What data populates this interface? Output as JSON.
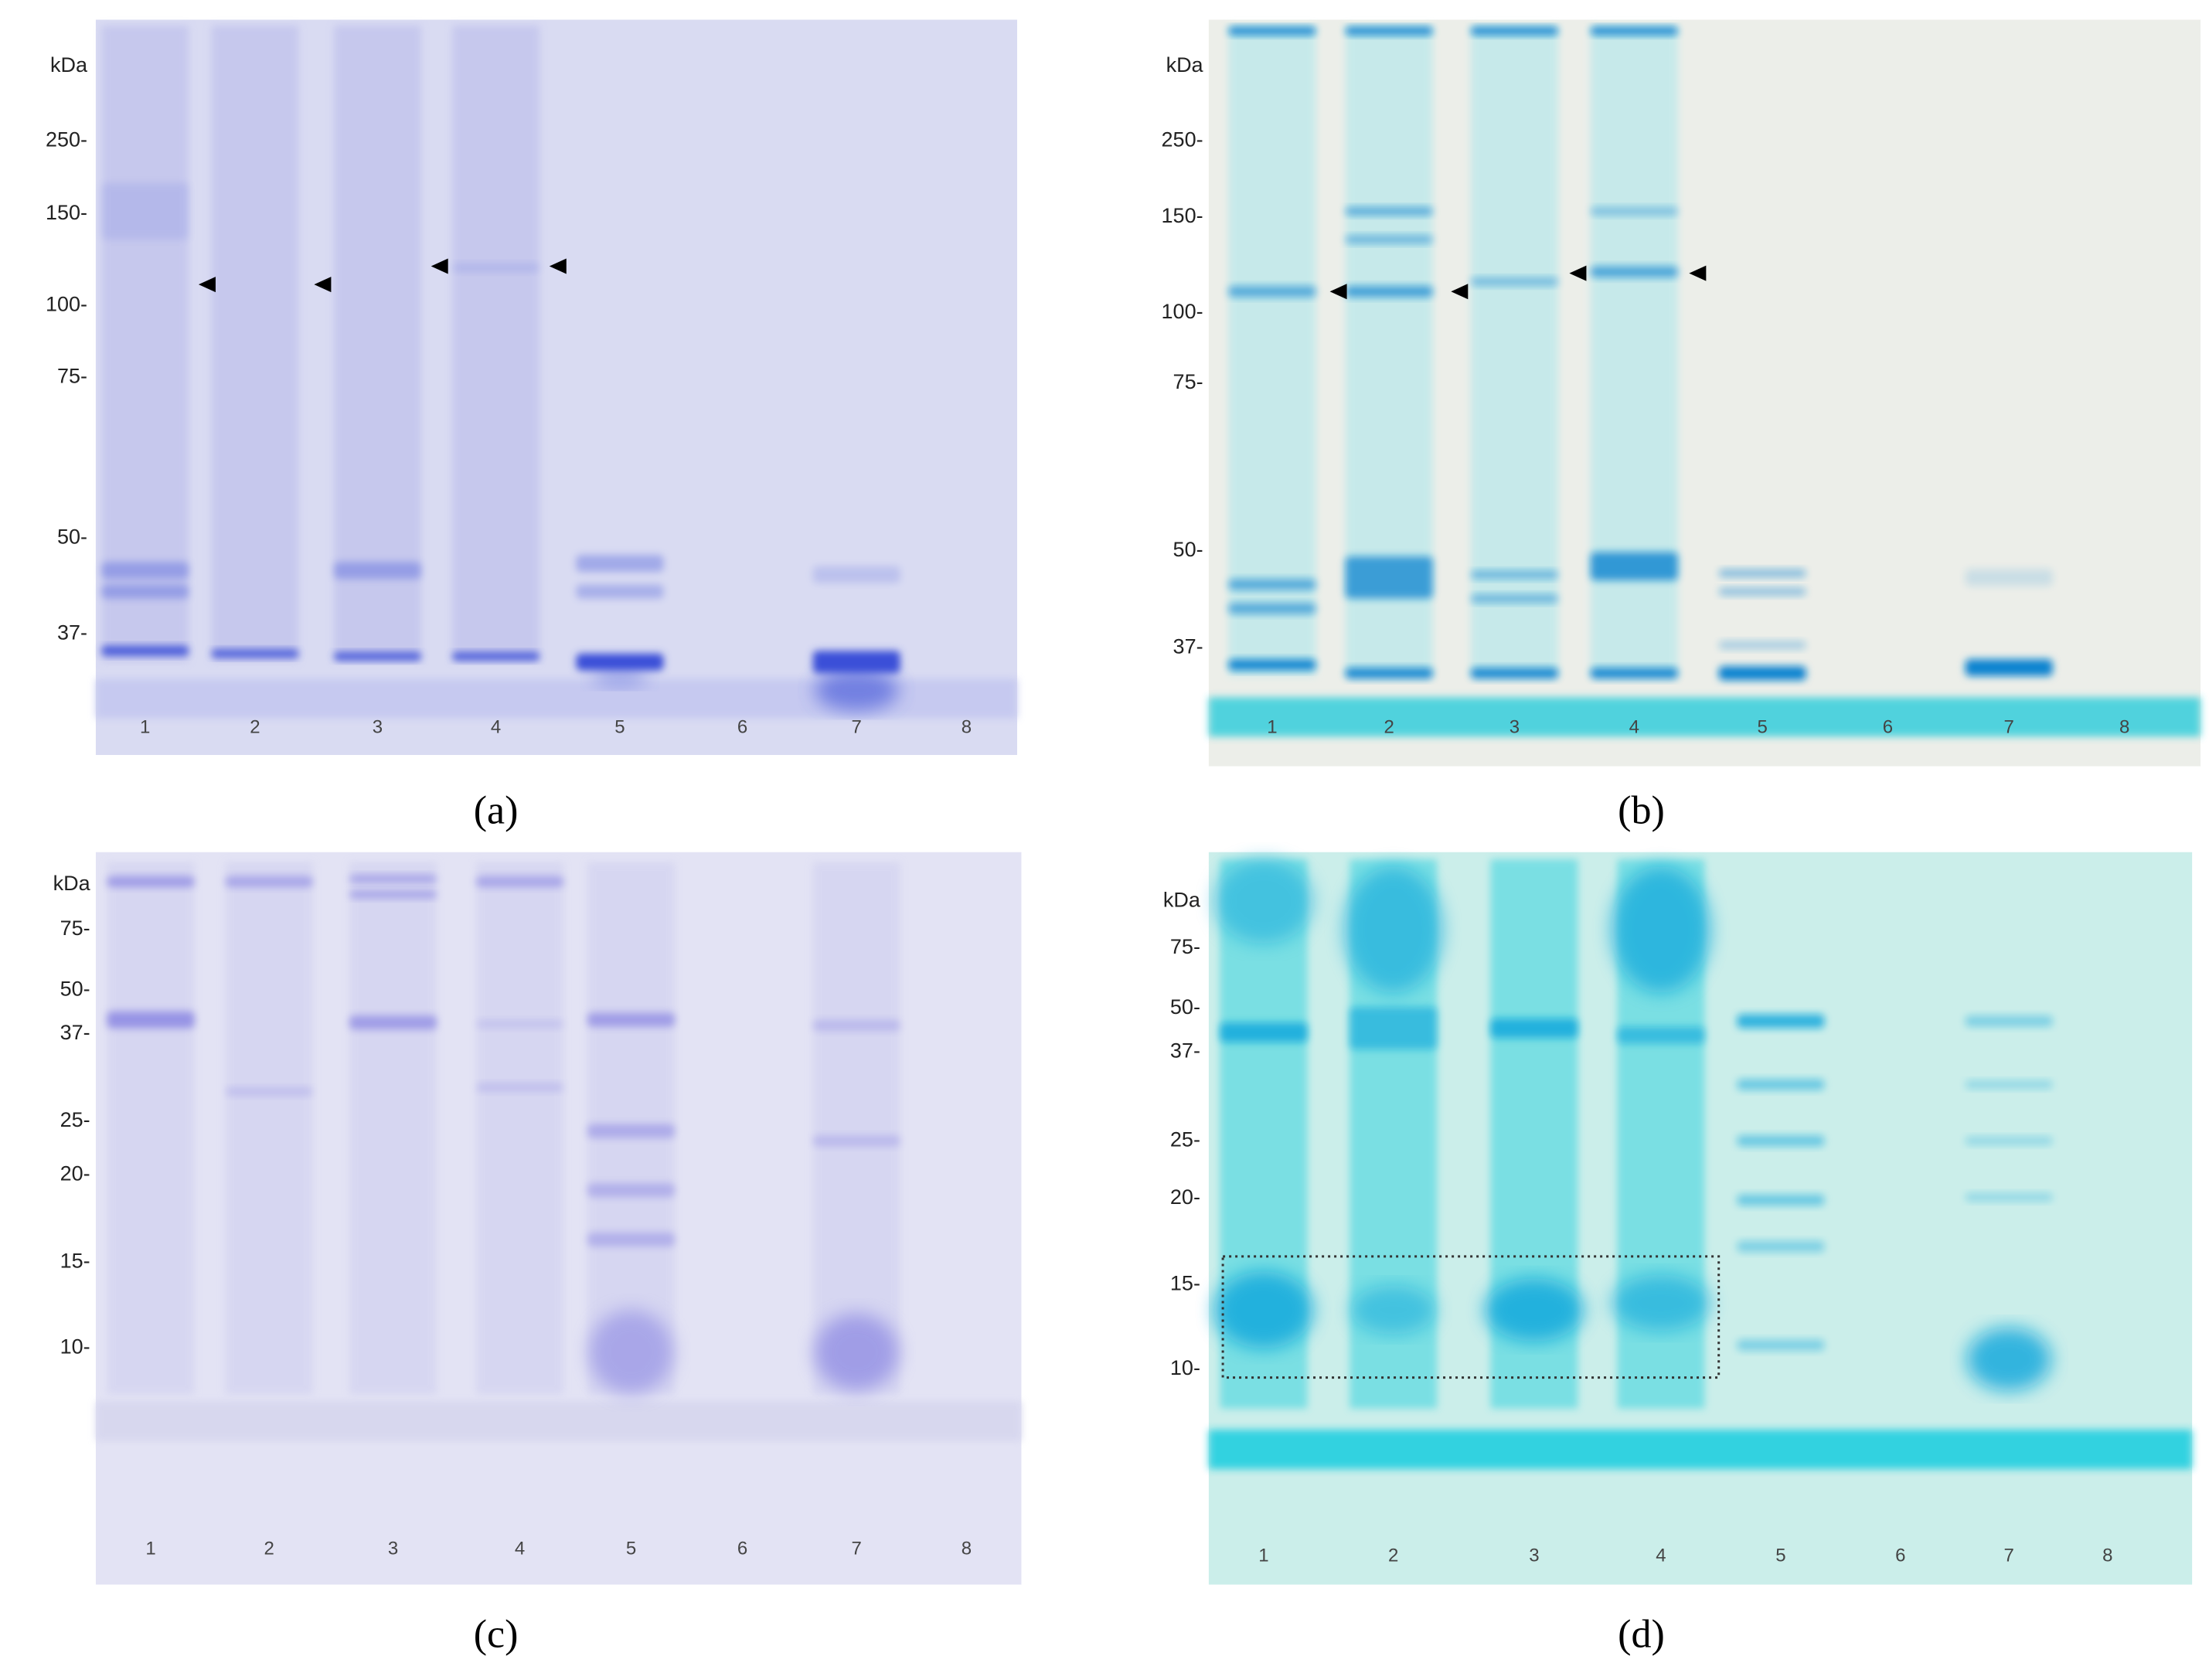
{
  "panels": [
    {
      "caption": "(a)",
      "unit": "kDa",
      "markers": [
        "250-",
        "150-",
        "100-",
        "75-",
        "50-",
        "37-"
      ],
      "lanes": [
        "1",
        "2",
        "3",
        "4",
        "5",
        "6",
        "7",
        "8"
      ]
    },
    {
      "caption": "(b)",
      "unit": "kDa",
      "markers": [
        "250-",
        "150-",
        "100-",
        "75-",
        "50-",
        "37-"
      ],
      "lanes": [
        "1",
        "2",
        "3",
        "4",
        "5",
        "6",
        "7",
        "8"
      ]
    },
    {
      "caption": "(c)",
      "unit": "kDa",
      "markers": [
        "75-",
        "50-",
        "37-",
        "25-",
        "20-",
        "15-",
        "10-"
      ],
      "lanes": [
        "1",
        "2",
        "3",
        "4",
        "5",
        "6",
        "7",
        "8"
      ]
    },
    {
      "caption": "(d)",
      "unit": "kDa",
      "markers": [
        "75-",
        "50-",
        "37-",
        "25-",
        "20-",
        "15-",
        "10-"
      ],
      "lanes": [
        "1",
        "2",
        "3",
        "4",
        "5",
        "6",
        "7",
        "8"
      ]
    }
  ]
}
